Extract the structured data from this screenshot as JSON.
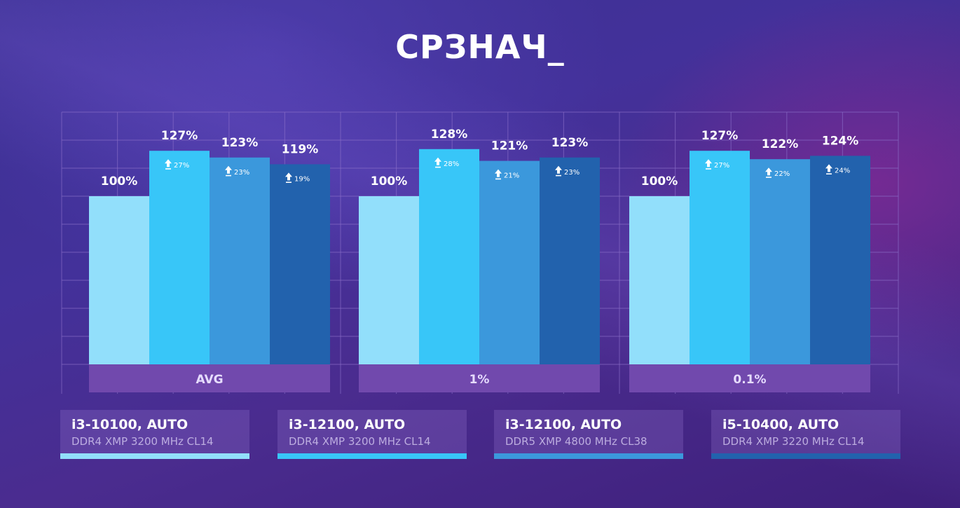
{
  "title": "СРЗНАЧ_",
  "chart_data": {
    "type": "bar",
    "categories": [
      "AVG",
      "1%",
      "0.1%"
    ],
    "series": [
      {
        "name": "i3-10100, AUTO",
        "subtitle": "DDR4 XMP 3200 MHz CL14",
        "color": "#92dffb",
        "values": [
          100,
          100,
          100
        ],
        "value_labels": [
          "100%",
          "100%",
          "100%"
        ],
        "gain_labels": [
          "",
          "",
          ""
        ]
      },
      {
        "name": "i3-12100, AUTO",
        "subtitle": "DDR4 XMP 3200 MHz CL14",
        "color": "#38c6f8",
        "values": [
          127,
          128,
          127
        ],
        "value_labels": [
          "127%",
          "128%",
          "127%"
        ],
        "gain_labels": [
          "27%",
          "28%",
          "27%"
        ]
      },
      {
        "name": "i3-12100, AUTO",
        "subtitle": "DDR5 XMP 4800 MHz CL38",
        "color": "#3b98dc",
        "values": [
          123,
          121,
          122
        ],
        "value_labels": [
          "123%",
          "121%",
          "122%"
        ],
        "gain_labels": [
          "23%",
          "21%",
          "22%"
        ]
      },
      {
        "name": "i5-10400, AUTO",
        "subtitle": "DDR4 XMP 3220 MHz CL14",
        "color": "#2262ad",
        "values": [
          119,
          123,
          124
        ],
        "value_labels": [
          "119%",
          "123%",
          "124%"
        ],
        "gain_labels": [
          "19%",
          "23%",
          "24%"
        ]
      }
    ],
    "ylim": [
      0,
      150
    ],
    "grid": true,
    "legend": "bottom"
  },
  "colors": {
    "category_band": "#7149ad",
    "category_text": "#e6dcff",
    "grid": "#8a6fc8"
  }
}
